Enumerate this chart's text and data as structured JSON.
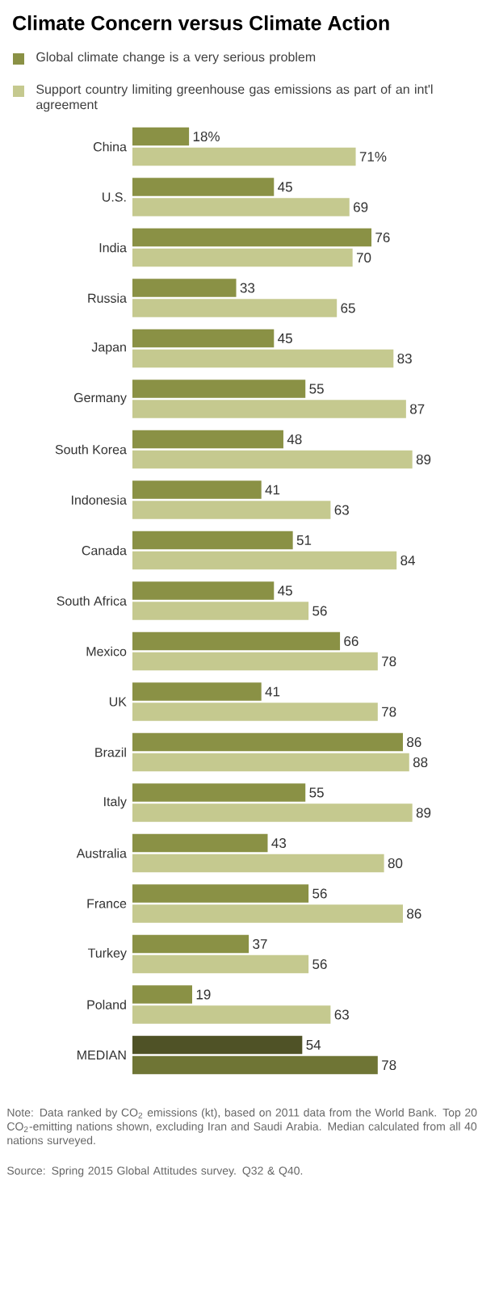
{
  "chart_data": {
    "type": "bar",
    "orientation": "horizontal",
    "title": "Climate Concern versus Climate Action",
    "categories": [
      "China",
      "U.S.",
      "India",
      "Russia",
      "Japan",
      "Germany",
      "South Korea",
      "Indonesia",
      "Canada",
      "South Africa",
      "Mexico",
      "UK",
      "Brazil",
      "Italy",
      "Australia",
      "France",
      "Turkey",
      "Poland",
      "MEDIAN"
    ],
    "series": [
      {
        "name": "Global climate change is a very serious problem",
        "color": "#8a9145",
        "colors": [
          "#8a9145",
          "#8a9145",
          "#8a9145",
          "#8a9145",
          "#8a9145",
          "#8a9145",
          "#8a9145",
          "#8a9145",
          "#8a9145",
          "#8a9145",
          "#8a9145",
          "#8a9145",
          "#8a9145",
          "#8a9145",
          "#8a9145",
          "#8a9145",
          "#8a9145",
          "#8a9145",
          "#4f5226"
        ],
        "values": [
          18,
          45,
          76,
          33,
          45,
          55,
          48,
          41,
          51,
          45,
          66,
          41,
          86,
          55,
          43,
          56,
          37,
          19,
          54
        ],
        "value_labels": [
          "18%",
          "45",
          "76",
          "33",
          "45",
          "55",
          "48",
          "41",
          "51",
          "45",
          "66",
          "41",
          "86",
          "55",
          "43",
          "56",
          "37",
          "19",
          "54"
        ]
      },
      {
        "name": "Support country limiting greenhouse gas emissions as part of an int'l agreement",
        "color": "#c5c98f",
        "colors": [
          "#c5c98f",
          "#c5c98f",
          "#c5c98f",
          "#c5c98f",
          "#c5c98f",
          "#c5c98f",
          "#c5c98f",
          "#c5c98f",
          "#c5c98f",
          "#c5c98f",
          "#c5c98f",
          "#c5c98f",
          "#c5c98f",
          "#c5c98f",
          "#c5c98f",
          "#c5c98f",
          "#c5c98f",
          "#c5c98f",
          "#6f7535"
        ],
        "values": [
          71,
          69,
          70,
          65,
          83,
          87,
          89,
          63,
          84,
          56,
          78,
          78,
          88,
          89,
          80,
          86,
          56,
          63,
          78
        ],
        "value_labels": [
          "71%",
          "69",
          "70",
          "65",
          "83",
          "87",
          "89",
          "63",
          "84",
          "56",
          "78",
          "78",
          "88",
          "89",
          "80",
          "86",
          "56",
          "63",
          "78"
        ]
      }
    ],
    "legend": "top",
    "annotations": [
      "Note: Data ranked by CO$_{2}$ emissions (kt), based on 2011 data from the World Bank. Top 20 CO$_{2}$-emitting nations shown, excluding Iran and Saudi Arabia. Median calculated from all 40 nations surveyed.",
      "Source: Spring 2015 Global Attitudes survey. Q32 & Q40."
    ]
  }
}
